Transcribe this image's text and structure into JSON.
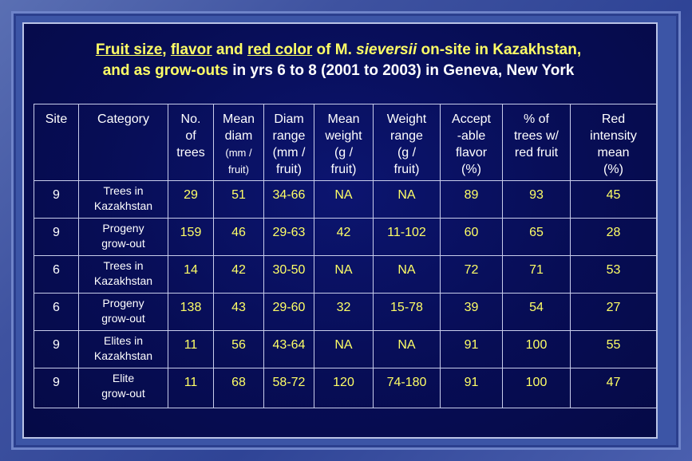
{
  "title": {
    "line1": {
      "p1": "Fruit size",
      "p2": ", ",
      "p3": "flavor",
      "p4": " and ",
      "p5": "red color",
      "p6": " of M. ",
      "p7": "sieversii",
      "p8": " on-site in Kazakhstan,"
    },
    "line2": {
      "p1": "and as grow-outs ",
      "p2": "in yrs 6 to 8 (2001 to 2003) in Geneva, New York"
    }
  },
  "table": {
    "headers": [
      {
        "lines": [
          "Site"
        ]
      },
      {
        "lines": [
          "Category"
        ]
      },
      {
        "lines": [
          "No.",
          "of",
          "trees"
        ]
      },
      {
        "lines": [
          "Mean",
          "diam"
        ],
        "small": [
          "(mm /",
          "fruit)"
        ]
      },
      {
        "lines": [
          "Diam",
          "range",
          "(mm /",
          "fruit)"
        ]
      },
      {
        "lines": [
          "Mean",
          "weight",
          "(g /",
          "fruit)"
        ]
      },
      {
        "lines": [
          "Weight",
          "range",
          "(g /",
          "fruit)"
        ]
      },
      {
        "lines": [
          "Accept",
          "-able",
          "flavor",
          "(%)"
        ]
      },
      {
        "lines": [
          "% of",
          "trees w/",
          "red fruit"
        ]
      },
      {
        "lines": [
          "Red",
          "intensity",
          "mean",
          "(%)"
        ]
      }
    ],
    "rows": [
      {
        "site": "9",
        "category": [
          "Trees in",
          "Kazakhstan"
        ],
        "trees": "29",
        "mean_diam": "51",
        "diam_range": "34-66",
        "mean_weight": "NA",
        "weight_range": "NA",
        "acceptable": "89",
        "red_fruit": "93",
        "red_intensity": "45"
      },
      {
        "site": "9",
        "category": [
          "Progeny",
          "grow-out"
        ],
        "trees": "159",
        "mean_diam": "46",
        "diam_range": "29-63",
        "mean_weight": "42",
        "weight_range": "11-102",
        "acceptable": "60",
        "red_fruit": "65",
        "red_intensity": "28"
      },
      {
        "site": "6",
        "category": [
          "Trees in",
          "Kazakhstan"
        ],
        "trees": "14",
        "mean_diam": "42",
        "diam_range": "30-50",
        "mean_weight": "NA",
        "weight_range": "NA",
        "acceptable": "72",
        "red_fruit": "71",
        "red_intensity": "53"
      },
      {
        "site": "6",
        "category": [
          "Progeny",
          "grow-out"
        ],
        "trees": "138",
        "mean_diam": "43",
        "diam_range": "29-60",
        "mean_weight": "32",
        "weight_range": "15-78",
        "acceptable": "39",
        "red_fruit": "54",
        "red_intensity": "27"
      },
      {
        "site": "9",
        "category": [
          "Elites in",
          "Kazakhstan"
        ],
        "trees": "11",
        "mean_diam": "56",
        "diam_range": "43-64",
        "mean_weight": "NA",
        "weight_range": "NA",
        "acceptable": "91",
        "red_fruit": "100",
        "red_intensity": "55"
      },
      {
        "site": "9",
        "category": [
          "Elite",
          "grow-out"
        ],
        "trees": "11",
        "mean_diam": "68",
        "diam_range": "58-72",
        "mean_weight": "120",
        "weight_range": "74-180",
        "acceptable": "91",
        "red_fruit": "100",
        "red_intensity": "47"
      }
    ]
  },
  "colors": {
    "title_yellow": "#ffff66",
    "panel_navy": "#070d55",
    "frame_blue": "#3c55a6"
  }
}
